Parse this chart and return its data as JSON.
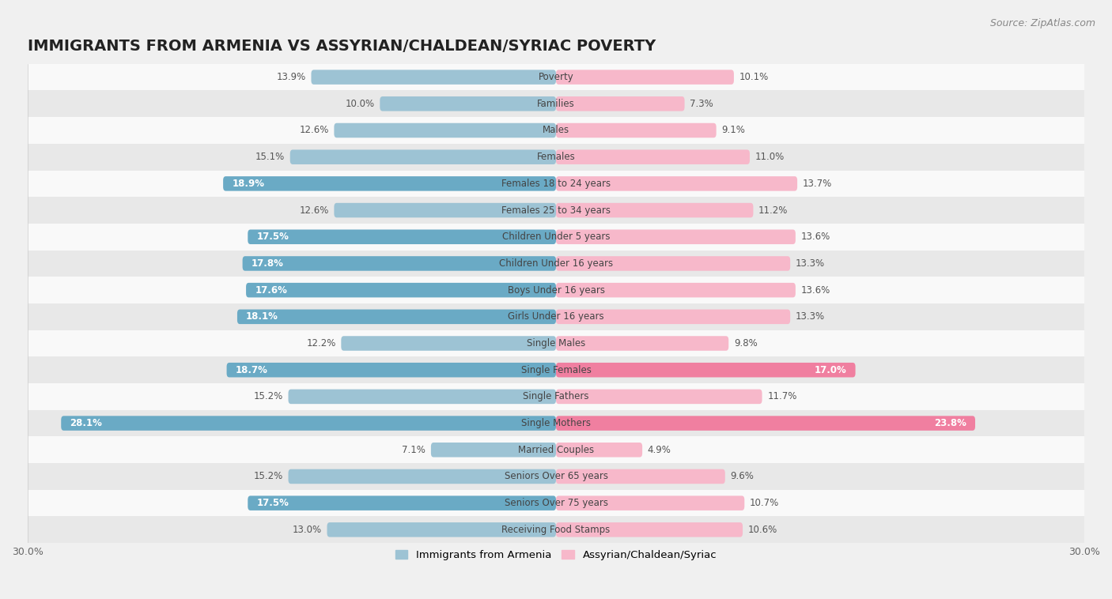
{
  "title": "IMMIGRANTS FROM ARMENIA VS ASSYRIAN/CHALDEAN/SYRIAC POVERTY",
  "source": "Source: ZipAtlas.com",
  "categories": [
    "Poverty",
    "Families",
    "Males",
    "Females",
    "Females 18 to 24 years",
    "Females 25 to 34 years",
    "Children Under 5 years",
    "Children Under 16 years",
    "Boys Under 16 years",
    "Girls Under 16 years",
    "Single Males",
    "Single Females",
    "Single Fathers",
    "Single Mothers",
    "Married Couples",
    "Seniors Over 65 years",
    "Seniors Over 75 years",
    "Receiving Food Stamps"
  ],
  "armenia_values": [
    13.9,
    10.0,
    12.6,
    15.1,
    18.9,
    12.6,
    17.5,
    17.8,
    17.6,
    18.1,
    12.2,
    18.7,
    15.2,
    28.1,
    7.1,
    15.2,
    17.5,
    13.0
  ],
  "assyrian_values": [
    10.1,
    7.3,
    9.1,
    11.0,
    13.7,
    11.2,
    13.6,
    13.3,
    13.6,
    13.3,
    9.8,
    17.0,
    11.7,
    23.8,
    4.9,
    9.6,
    10.7,
    10.6
  ],
  "armenia_color": "#9dc3d4",
  "armenia_highlight_color": "#6aaac5",
  "assyrian_color": "#f7b8ca",
  "assyrian_highlight_color": "#f07fa0",
  "background_color": "#f0f0f0",
  "row_odd_color": "#f9f9f9",
  "row_even_color": "#e8e8e8",
  "xlim": 30.0,
  "legend_armenia": "Immigrants from Armenia",
  "legend_assyrian": "Assyrian/Chaldean/Syriac",
  "title_fontsize": 14,
  "source_fontsize": 9,
  "cat_fontsize": 8.5,
  "value_fontsize": 8.5,
  "armenia_inside_threshold": 16.5,
  "assyrian_inside_threshold": 16.5
}
